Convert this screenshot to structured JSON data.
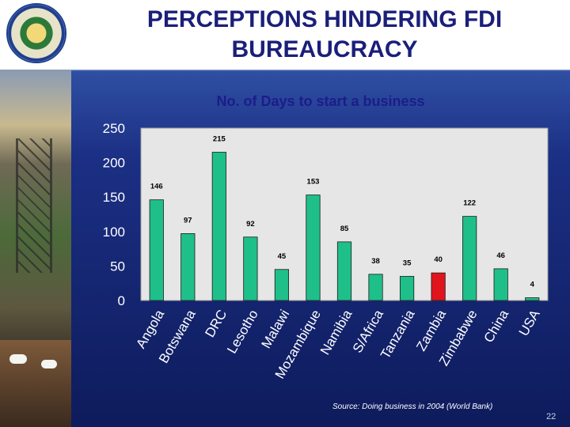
{
  "header": {
    "title_line1": "PERCEPTIONS HINDERING FDI",
    "title_line2": "BUREAUCRACY"
  },
  "footer": {
    "source": "Source: Doing business in 2004 (World Bank)",
    "page_number": "22"
  },
  "colors": {
    "bar_default": "#1fbf8a",
    "bar_highlight": "#e0141c",
    "plot_bg": "#e6e6e6",
    "title": "#1a1f7a"
  },
  "chart_data": {
    "type": "bar",
    "title": "No. of Days to start a business",
    "xlabel": "",
    "ylabel": "",
    "ylim": [
      0,
      250
    ],
    "yticks": [
      0,
      50,
      100,
      150,
      200,
      250
    ],
    "grid": false,
    "legend": "none",
    "categories": [
      "Angola",
      "Botswana",
      "DRC",
      "Lesotho",
      "Malawi",
      "Mozambique",
      "Namibia",
      "S/Africa",
      "Tanzania",
      "Zambia",
      "Zimbabwe",
      "China",
      "USA"
    ],
    "values": [
      146,
      97,
      215,
      92,
      45,
      153,
      85,
      38,
      35,
      40,
      122,
      46,
      4
    ],
    "highlight_category": "Zambia"
  }
}
